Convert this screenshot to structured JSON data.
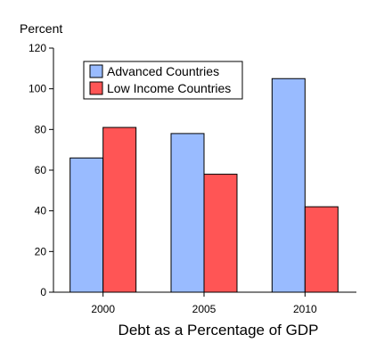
{
  "chart_data": {
    "type": "bar",
    "title": "Debt as a Percentage of GDP",
    "ylabel": "Percent",
    "xlabel": "",
    "categories": [
      "2000",
      "2005",
      "2010"
    ],
    "series": [
      {
        "name": "Advanced Countries",
        "values": [
          66,
          78,
          105
        ],
        "color": "#99bbff"
      },
      {
        "name": "Low Income Countries",
        "values": [
          81,
          58,
          42
        ],
        "color": "#ff5555"
      }
    ],
    "ylim": [
      0,
      120
    ],
    "yticks": [
      0,
      20,
      40,
      60,
      80,
      100,
      120
    ],
    "grid": false,
    "legend_position": "top-left"
  }
}
